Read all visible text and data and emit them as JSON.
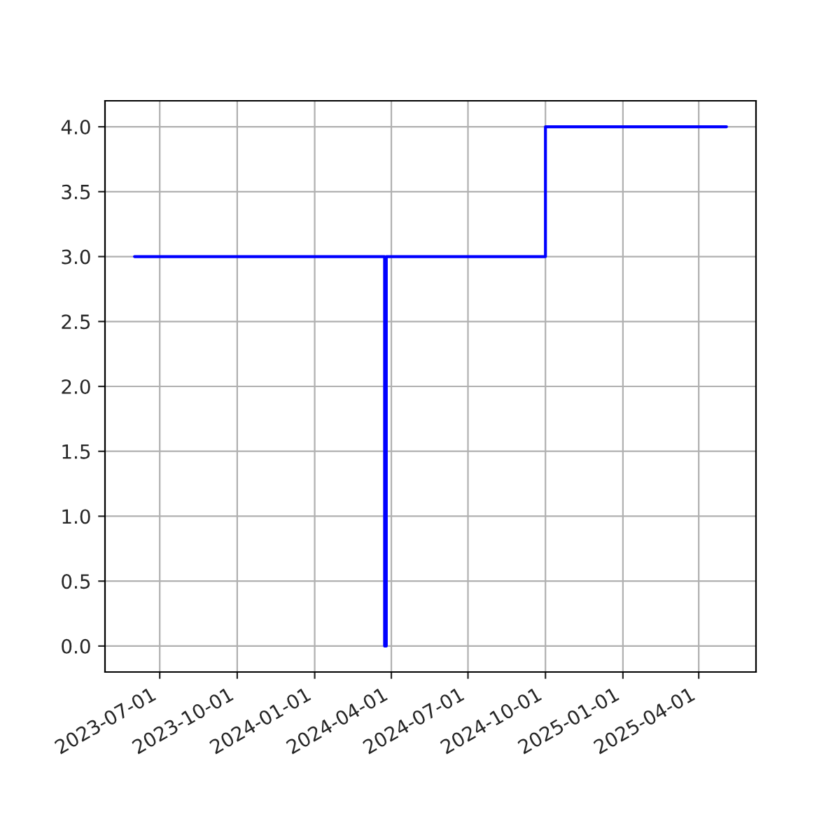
{
  "chart_data": {
    "type": "step",
    "x": [
      "2023-06-01",
      "2024-03-24",
      "2024-03-26",
      "2024-10-01",
      "2025-05-04"
    ],
    "series": [
      {
        "color": "#0000ff",
        "values": [
          3,
          0,
          3,
          4,
          4
        ]
      }
    ],
    "xlim": [
      "2023-04-27",
      "2025-06-08"
    ],
    "xticks": [
      "2023-07-01",
      "2023-10-01",
      "2024-01-01",
      "2024-04-01",
      "2024-07-01",
      "2024-10-01",
      "2025-01-01",
      "2025-04-01"
    ],
    "ylim": [
      -0.2,
      4.2
    ],
    "yticks": [
      {
        "value": 0,
        "label": "0.0"
      },
      {
        "value": 0.5,
        "label": "0.5"
      },
      {
        "value": 1,
        "label": "1.0"
      },
      {
        "value": 1.5,
        "label": "1.5"
      },
      {
        "value": 2,
        "label": "2.0"
      },
      {
        "value": 2.5,
        "label": "2.5"
      },
      {
        "value": 3,
        "label": "3.0"
      },
      {
        "value": 3.5,
        "label": "3.5"
      },
      {
        "value": 4,
        "label": "4.0"
      }
    ],
    "grid": true
  }
}
